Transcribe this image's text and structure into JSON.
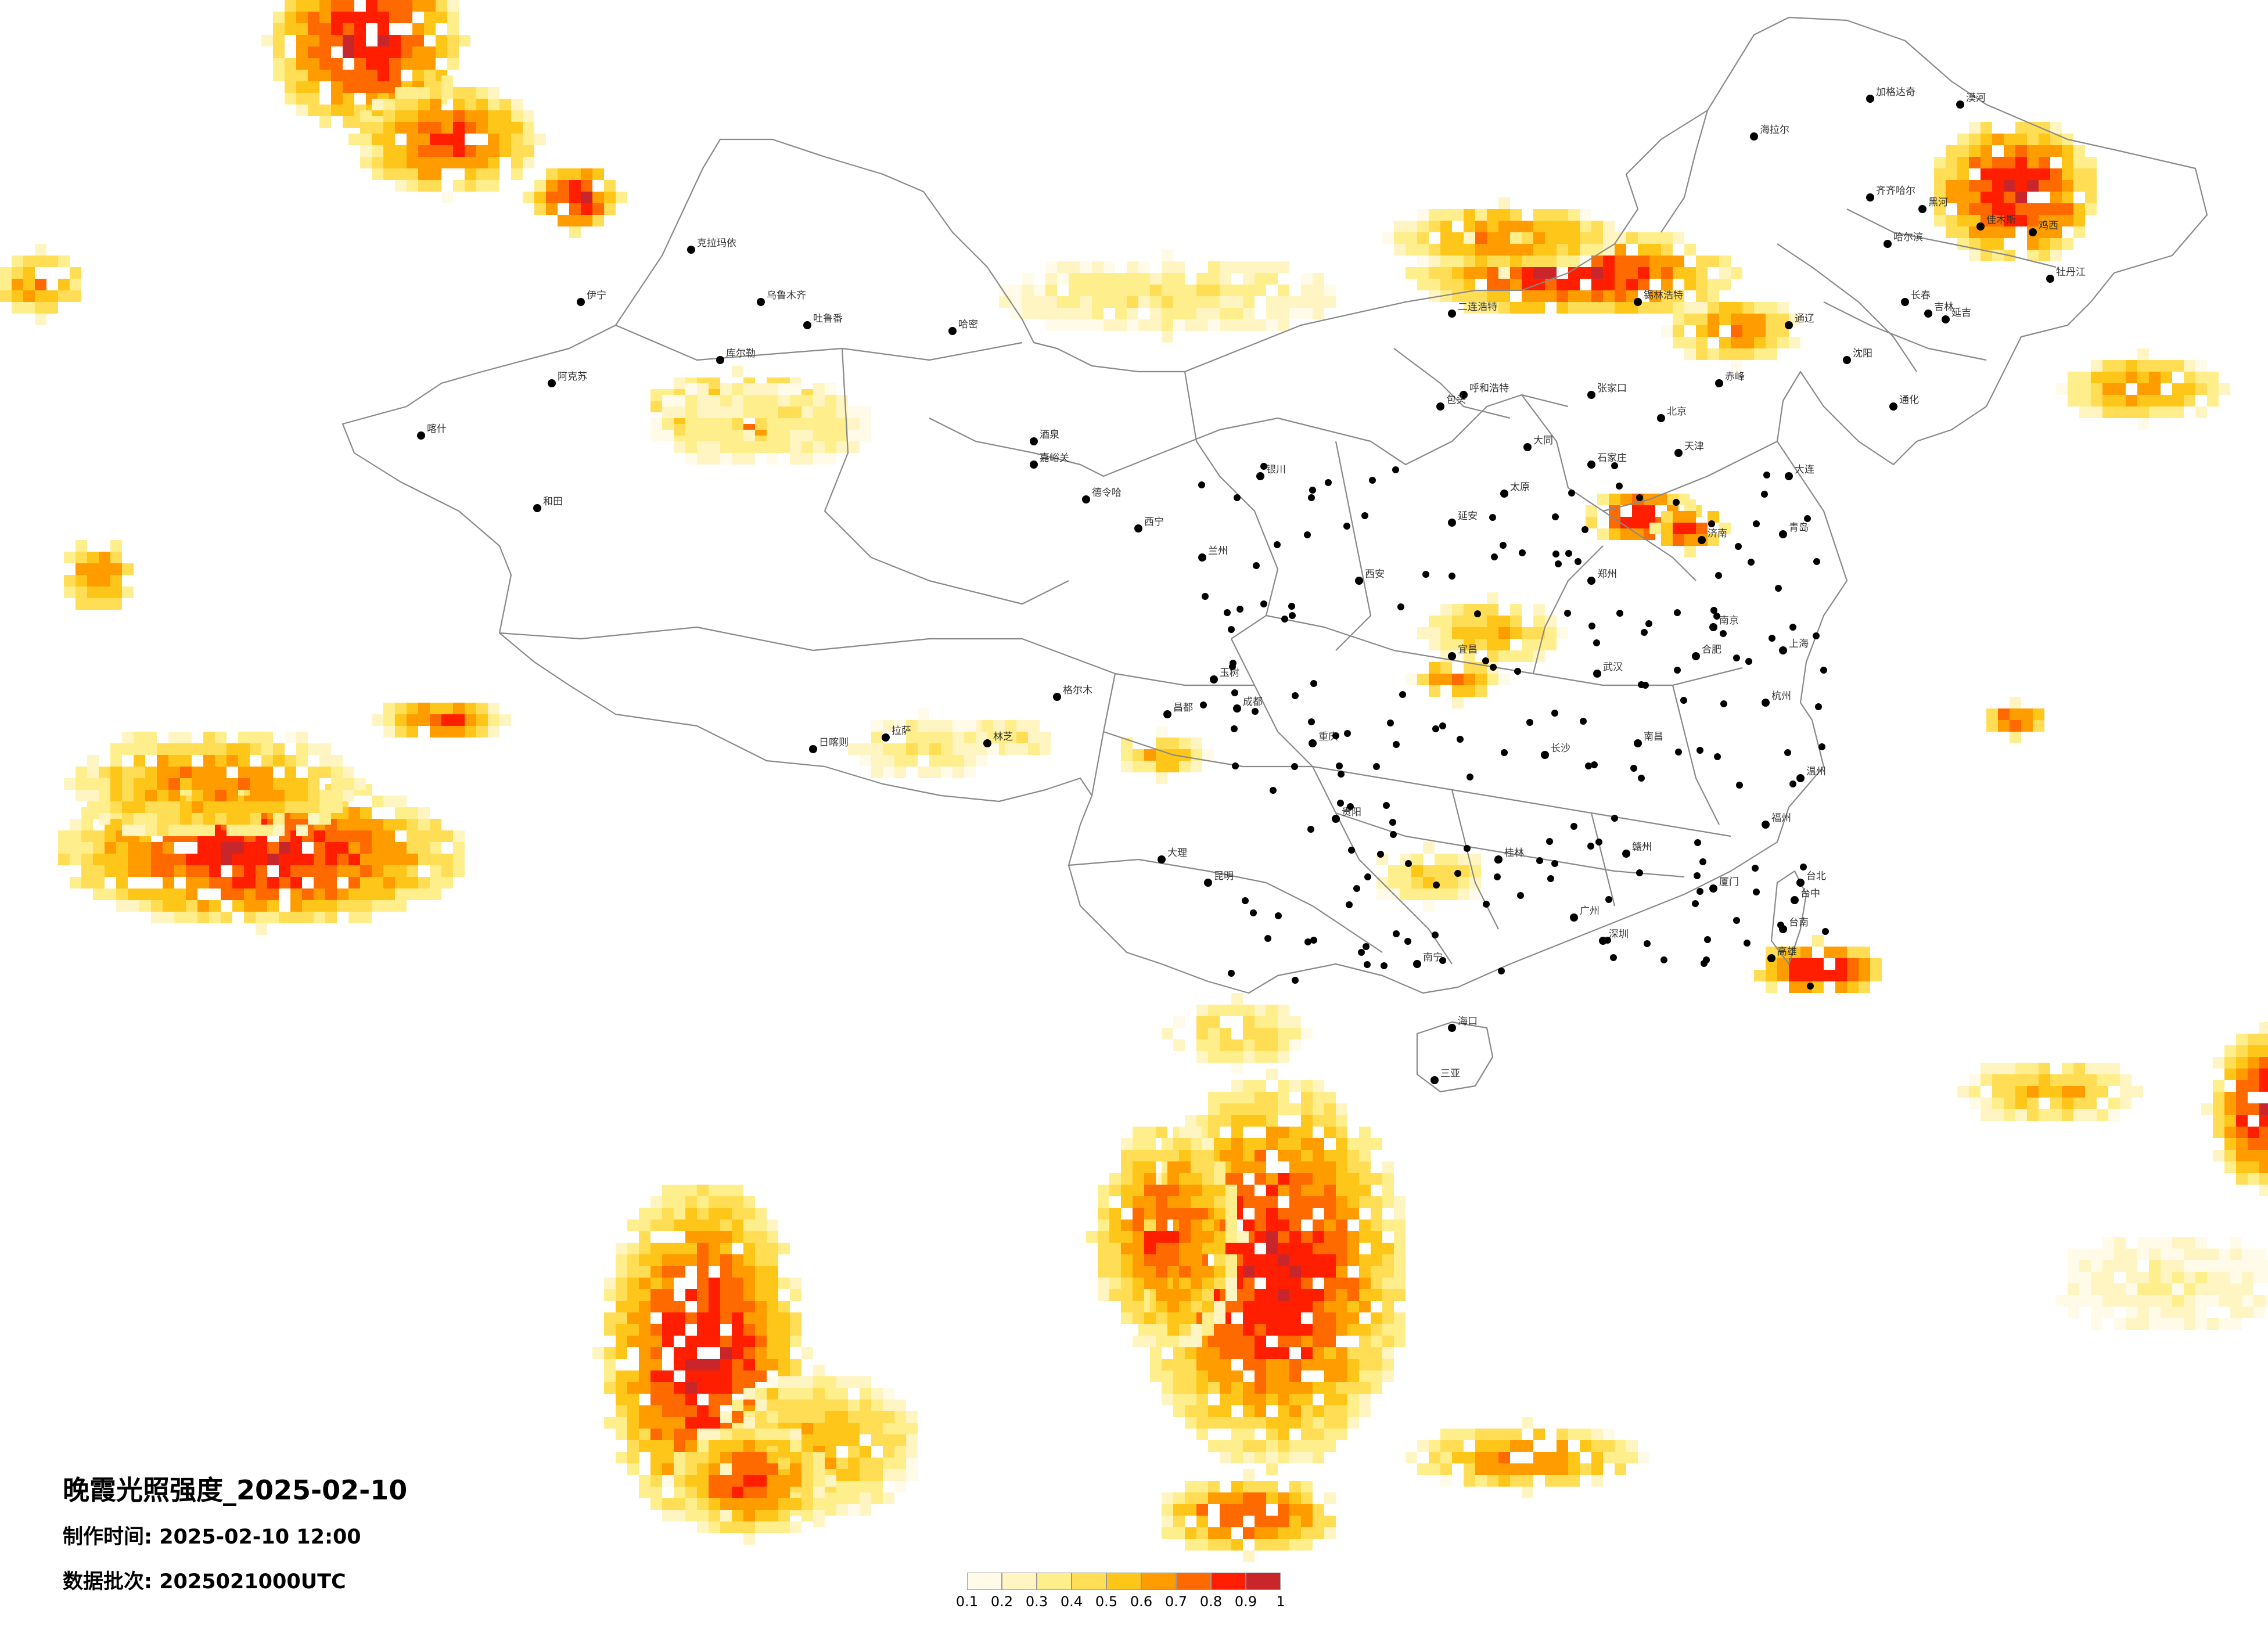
{
  "title": "晚霞光照强度_2025-02-10",
  "made_time_label": "制作时间:",
  "made_time_value": "2025-02-10 12:00",
  "batch_label": "数据批次:",
  "batch_value": "2025021000UTC",
  "colorbar": {
    "ticks": [
      "0.1",
      "0.2",
      "0.3",
      "0.4",
      "0.5",
      "0.6",
      "0.7",
      "0.8",
      "0.9",
      "1"
    ],
    "colors": [
      "#fffbe8",
      "#fff5c2",
      "#ffee8c",
      "#ffdd55",
      "#ffc61a",
      "#ff9d00",
      "#ff6a00",
      "#ff1f00",
      "#c9262c"
    ]
  },
  "cities": [
    {
      "name": "漠河"
    },
    {
      "name": "加格达奇"
    },
    {
      "name": "海拉尔"
    },
    {
      "name": "黑河"
    },
    {
      "name": "齐齐哈尔"
    },
    {
      "name": "哈尔滨"
    },
    {
      "name": "佳木斯"
    },
    {
      "name": "鸡西"
    },
    {
      "name": "牡丹江"
    },
    {
      "name": "长春"
    },
    {
      "name": "吉林"
    },
    {
      "name": "沈阳"
    },
    {
      "name": "通化"
    },
    {
      "name": "大连"
    },
    {
      "name": "通辽"
    },
    {
      "name": "赤峰"
    },
    {
      "name": "锡林浩特"
    },
    {
      "name": "呼和浩特"
    },
    {
      "name": "包头"
    },
    {
      "name": "北京"
    },
    {
      "name": "天津"
    },
    {
      "name": "石家庄"
    },
    {
      "name": "张家口"
    },
    {
      "name": "太原"
    },
    {
      "name": "济南"
    },
    {
      "name": "青岛"
    },
    {
      "name": "郑州"
    },
    {
      "name": "西安"
    },
    {
      "name": "银川"
    },
    {
      "name": "兰州"
    },
    {
      "name": "西宁"
    },
    {
      "name": "武汉"
    },
    {
      "name": "南京"
    },
    {
      "name": "上海"
    },
    {
      "name": "杭州"
    },
    {
      "name": "合肥"
    },
    {
      "name": "南昌"
    },
    {
      "name": "长沙"
    },
    {
      "name": "福州"
    },
    {
      "name": "广州"
    },
    {
      "name": "深圳"
    },
    {
      "name": "南宁"
    },
    {
      "name": "海口"
    },
    {
      "name": "三亚"
    },
    {
      "name": "贵阳"
    },
    {
      "name": "昆明"
    },
    {
      "name": "成都"
    },
    {
      "name": "重庆"
    },
    {
      "name": "拉萨"
    },
    {
      "name": "日喀则"
    },
    {
      "name": "林芝"
    },
    {
      "name": "格尔木"
    },
    {
      "name": "乌鲁木齐"
    },
    {
      "name": "喀什"
    },
    {
      "name": "和田"
    },
    {
      "name": "阿克苏"
    },
    {
      "name": "库尔勒"
    },
    {
      "name": "哈密"
    },
    {
      "name": "吐鲁番"
    },
    {
      "name": "克拉玛依"
    },
    {
      "name": "伊宁"
    },
    {
      "name": "台北"
    },
    {
      "name": "台中"
    },
    {
      "name": "台南"
    },
    {
      "name": "高雄"
    },
    {
      "name": "玉树"
    },
    {
      "name": "昌都"
    },
    {
      "name": "嘉峪关"
    },
    {
      "name": "酒泉"
    },
    {
      "name": "德令哈"
    },
    {
      "name": "大理"
    },
    {
      "name": "桂林"
    },
    {
      "name": "赣州"
    },
    {
      "name": "厦门"
    },
    {
      "name": "温州"
    },
    {
      "name": "宜昌"
    },
    {
      "name": "延安"
    },
    {
      "name": "大同"
    },
    {
      "name": "二连浩特"
    },
    {
      "name": "延吉"
    }
  ]
}
